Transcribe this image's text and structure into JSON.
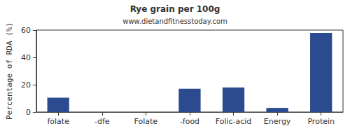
{
  "chart_data": {
    "type": "bar",
    "title": "Rye grain per 100g",
    "subtitle": "www.dietandfitnesstoday.com",
    "y_label": "Percentage of RDA (%)",
    "categories": [
      "folate",
      "-dfe",
      "Folate",
      "-food",
      "Folic-acid",
      "Energy",
      "Protein"
    ],
    "values": [
      10.5,
      0,
      0,
      17,
      18,
      3,
      58
    ],
    "color": "#2b4a8f",
    "ylim": [
      0,
      60
    ],
    "yticks": [
      0,
      20,
      40,
      60
    ],
    "grid": false
  }
}
